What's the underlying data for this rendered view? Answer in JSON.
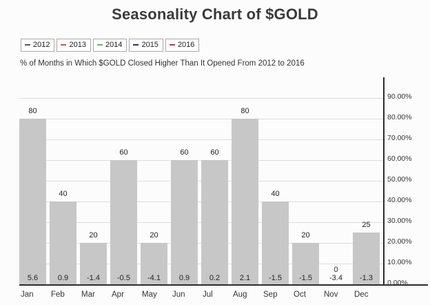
{
  "title": "Seasonality Chart of $GOLD",
  "subtitle": "% of Months in Which $GOLD Closed Higher Than It Opened From 2012 to 2016",
  "legend": {
    "items": [
      {
        "label": "2012",
        "dash_color": "#555566"
      },
      {
        "label": "2013",
        "dash_color": "#cc5555"
      },
      {
        "label": "2014",
        "dash_color": "#7aa87a"
      },
      {
        "label": "2015",
        "dash_color": "#333344"
      },
      {
        "label": "2016",
        "dash_color": "#aa4444"
      }
    ]
  },
  "chart_data": {
    "type": "bar",
    "title": "Seasonality Chart of $GOLD",
    "subtitle": "% of Months in Which $GOLD Closed Higher Than It Opened From 2012 to 2016",
    "categories": [
      "Jan",
      "Feb",
      "Mar",
      "Apr",
      "May",
      "Jun",
      "Jul",
      "Aug",
      "Sep",
      "Oct",
      "Nov",
      "Dec"
    ],
    "series": [
      {
        "name": "pct_months_closed_higher",
        "values": [
          80,
          40,
          20,
          60,
          20,
          60,
          60,
          80,
          40,
          20,
          0,
          25
        ]
      },
      {
        "name": "avg_change_labels",
        "values": [
          "5.6",
          "0.9",
          "-1.4",
          "-0.5",
          "-4.1",
          "0.9",
          "0.2",
          "2.1",
          "-1.5",
          "-1.5",
          "-3.4",
          "-1.3"
        ]
      }
    ],
    "bar_top_labels": [
      "80",
      "40",
      "20",
      "60",
      "20",
      "60",
      "60",
      "80",
      "40",
      "20",
      "0",
      "25"
    ],
    "ylabel": "",
    "xlabel": "",
    "ylim": [
      0,
      90
    ],
    "y_tick_labels": [
      "90.00%",
      "80.00%",
      "70.00%",
      "60.00%",
      "50.00%",
      "40.00%",
      "30.00%",
      "20.00%",
      "10.00%",
      "0.00%"
    ],
    "y_axis_side": "right",
    "grid": true,
    "legend_position": "top-left",
    "bar_color": "#c7c7c7",
    "grid_color": "#dddddd",
    "axis_color": "#2b2b2b"
  }
}
